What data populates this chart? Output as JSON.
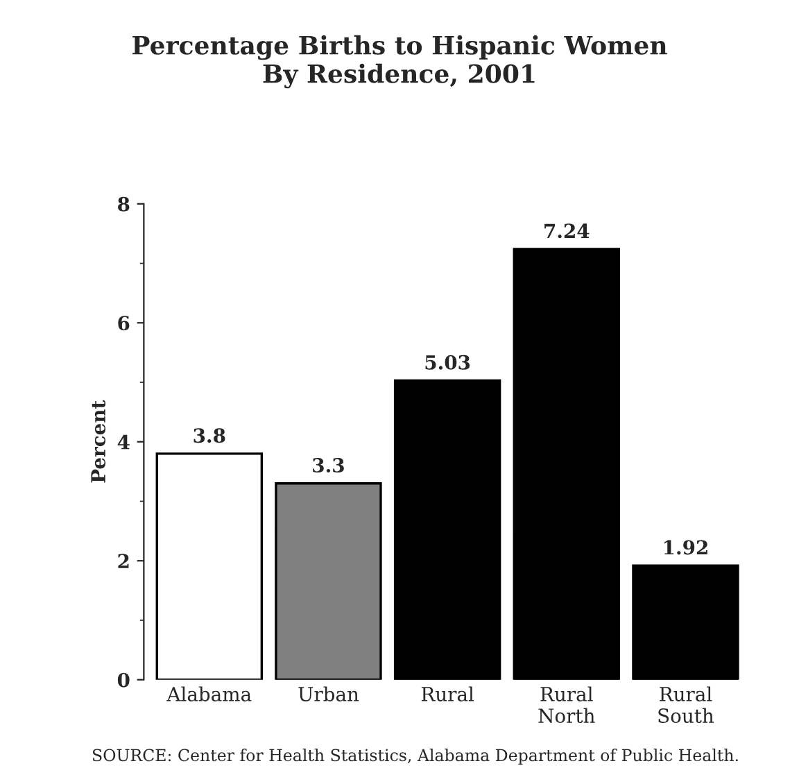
{
  "chart_data": {
    "type": "bar",
    "title": "Percentage Births to Hispanic Women\nBy Residence, 2001",
    "ylabel": "Percent",
    "categories": [
      "Alabama",
      "Urban",
      "Rural",
      "Rural\nNorth",
      "Rural\nSouth"
    ],
    "values": [
      3.8,
      3.3,
      5.03,
      7.24,
      1.92
    ],
    "colors": [
      "#ffffff",
      "#808080",
      "#000000",
      "#000000",
      "#000000"
    ],
    "ylim": [
      0,
      8
    ],
    "yticks": [
      0,
      2,
      4,
      6,
      8
    ],
    "grid": false,
    "data_labels": true,
    "annotations": [
      "SOURCE: Center for Health Statistics, Alabama Department of Public Health."
    ]
  }
}
